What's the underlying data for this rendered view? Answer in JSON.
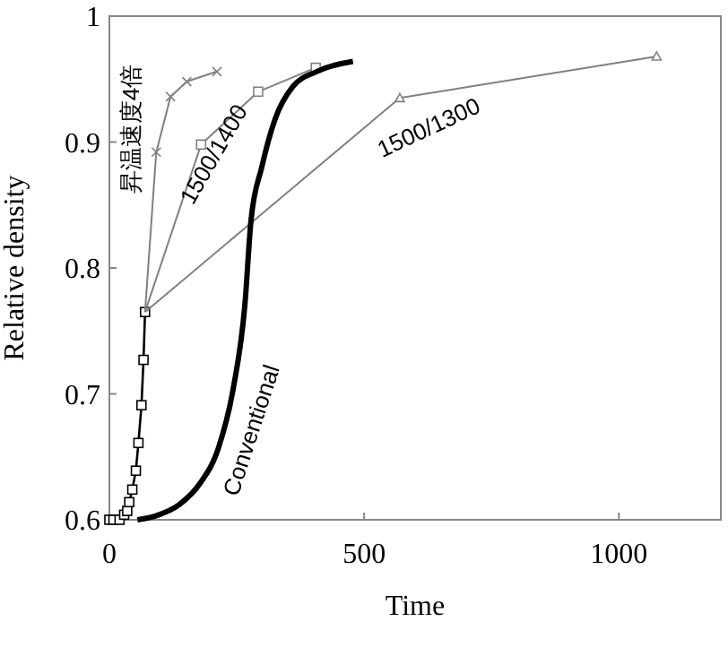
{
  "chart_data": {
    "type": "line",
    "xlabel": "Time",
    "ylabel": "Relative density",
    "xlim": [
      0,
      1200
    ],
    "xticks": [
      0,
      500,
      1000
    ],
    "ylim": [
      0.6,
      1
    ],
    "yticks": [
      0.6,
      0.7,
      0.8,
      0.9,
      1
    ],
    "grid": false,
    "series": [
      {
        "color": "#000000",
        "marker": "square",
        "x": [
          0,
          8,
          20,
          29,
          35,
          39,
          45,
          52,
          57,
          63,
          67,
          70
        ],
        "values": [
          0.6,
          0.6,
          0.6,
          0.604,
          0.607,
          0.614,
          0.624,
          0.639,
          0.661,
          0.691,
          0.727,
          0.765
        ]
      },
      {
        "name": "昇温速度4倍",
        "color": "#808080",
        "marker": "cross",
        "x": [
          70,
          92,
          120,
          152,
          211
        ],
        "values": [
          0.765,
          0.892,
          0.936,
          0.948,
          0.956
        ]
      },
      {
        "name": "1500/1400",
        "color": "#808080",
        "marker": "square",
        "x": [
          70,
          180,
          292,
          405
        ],
        "values": [
          0.765,
          0.898,
          0.94,
          0.959
        ]
      },
      {
        "name": "1500/1300",
        "color": "#808080",
        "marker": "triangle",
        "x": [
          70,
          570,
          1074
        ],
        "values": [
          0.765,
          0.935,
          0.968
        ]
      },
      {
        "name": "Conventional",
        "color": "#000000",
        "marker": "none",
        "x": [
          55,
          90,
          137,
          178,
          214,
          243,
          266,
          278,
          299,
          325,
          360,
          407,
          478
        ],
        "values": [
          0.6,
          0.603,
          0.612,
          0.629,
          0.657,
          0.704,
          0.771,
          0.838,
          0.88,
          0.918,
          0.944,
          0.956,
          0.964
        ]
      }
    ]
  }
}
